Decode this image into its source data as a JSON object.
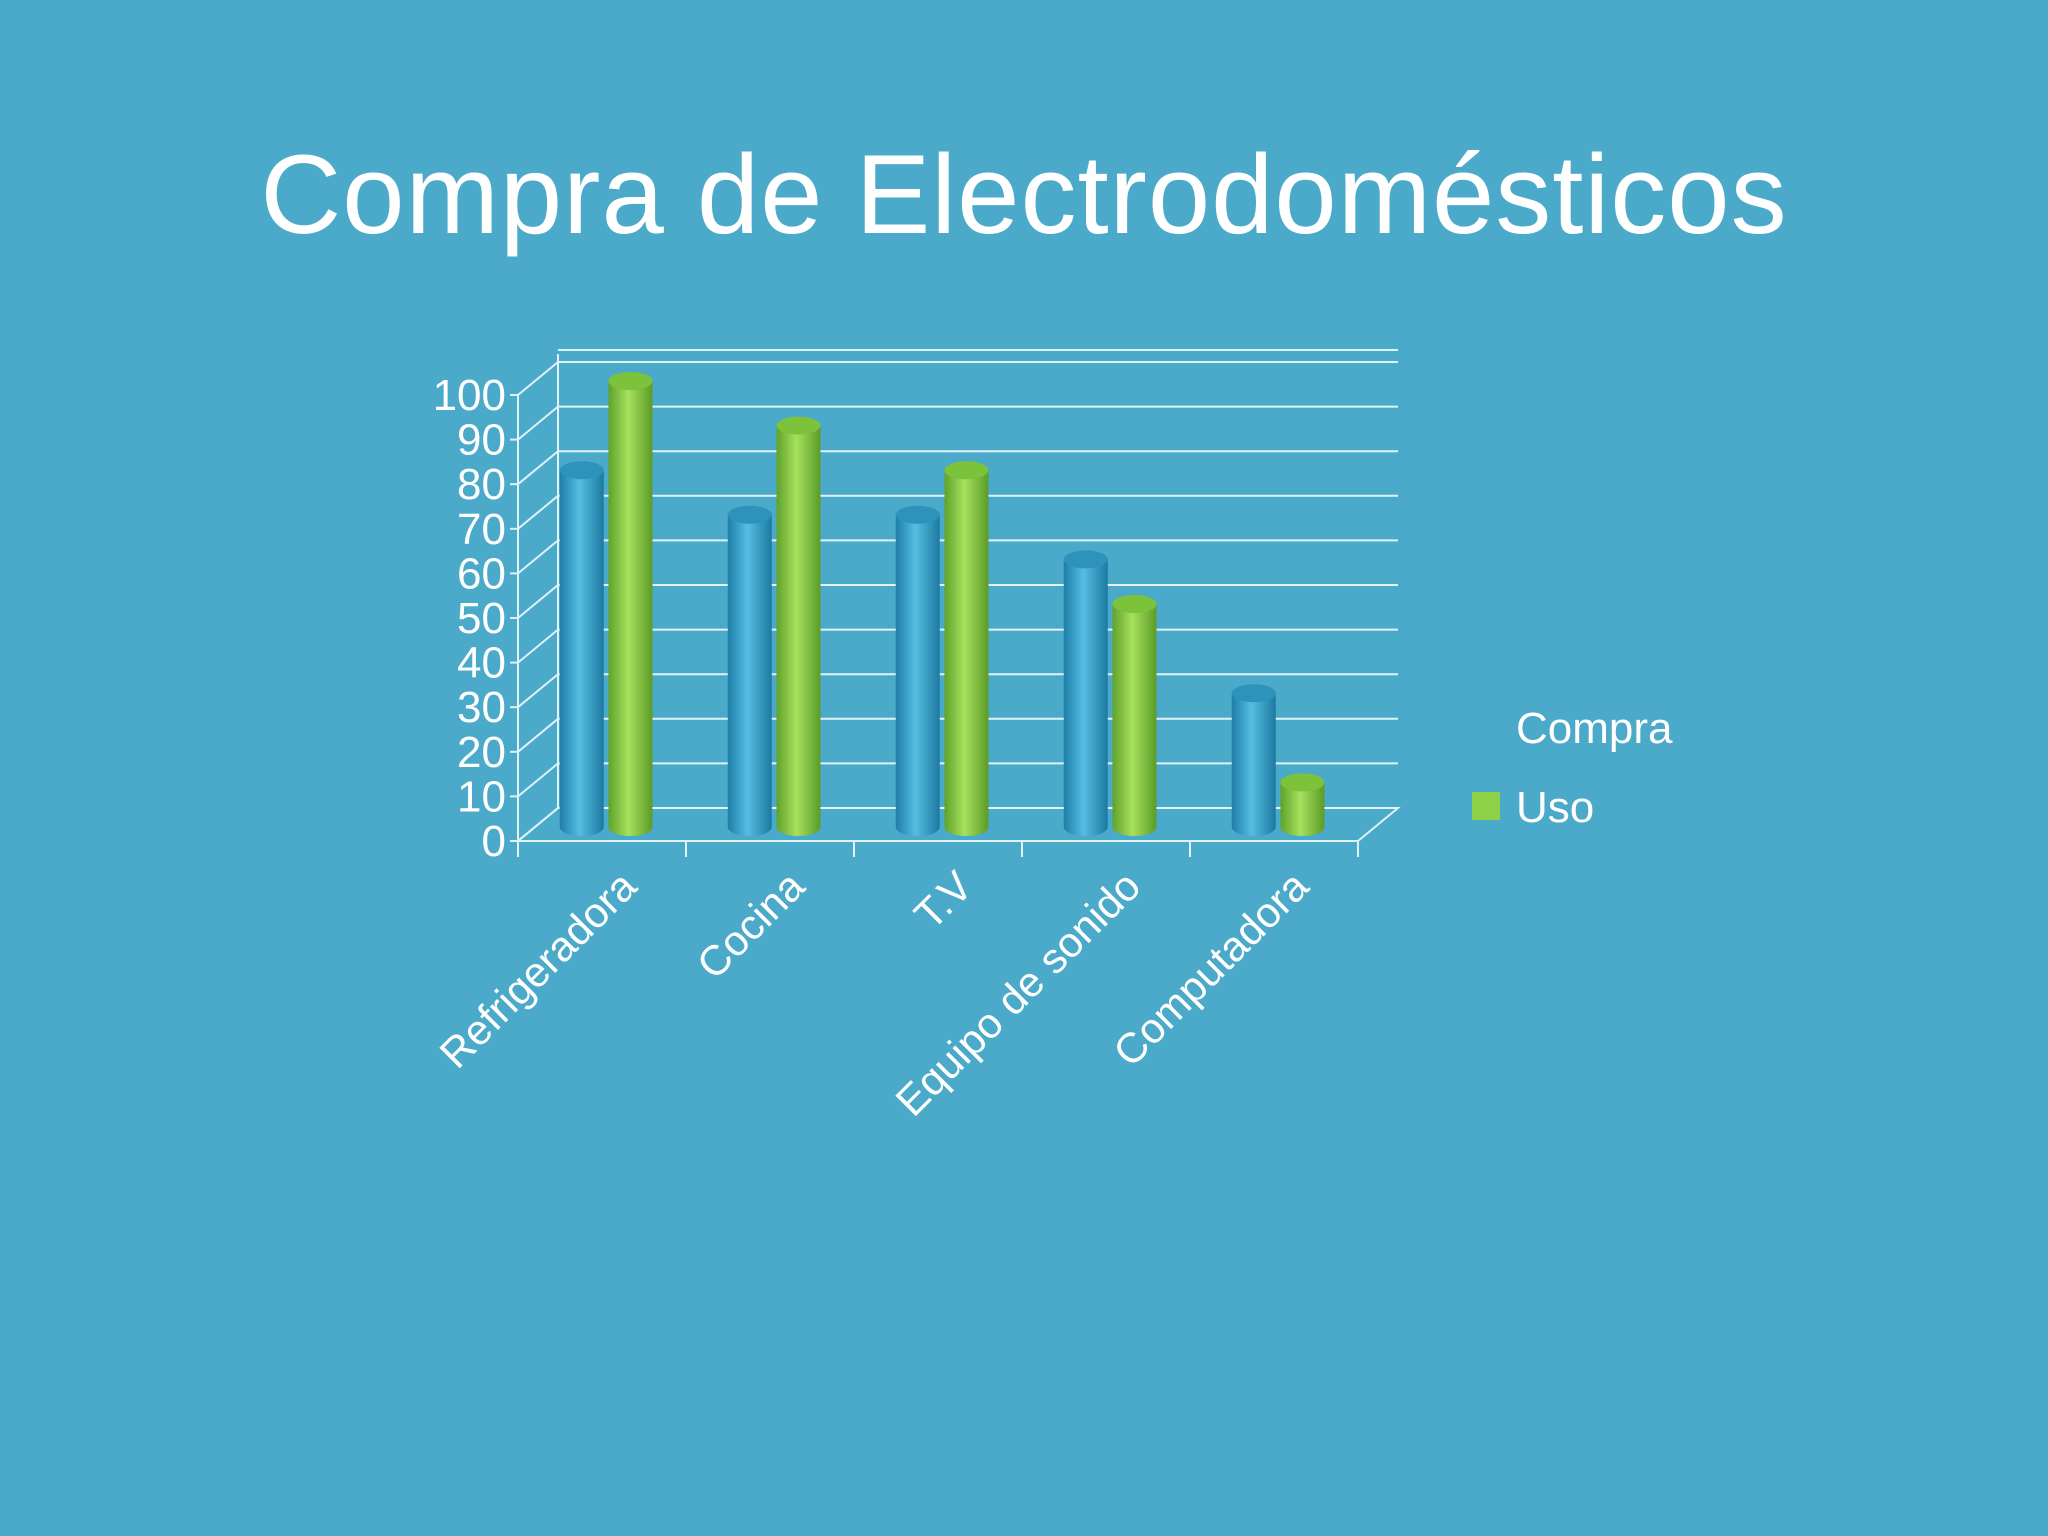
{
  "slide": {
    "title": "Compra de Electrodomésticos"
  },
  "colors": {
    "background": "#4baac9",
    "series_compra": "#3fa6cf",
    "series_uso": "#8ed147",
    "grid": "#dff2f8",
    "text": "#ffffff"
  },
  "chart_data": {
    "type": "bar",
    "style": "3d-cylinder",
    "title": "",
    "xlabel": "",
    "ylabel": "",
    "categories": [
      "Refrigeradora",
      "Cocina",
      "T.V",
      "Equipo de sonido",
      "Computadora"
    ],
    "series": [
      {
        "name": "Compra",
        "values": [
          80,
          70,
          70,
          60,
          30
        ],
        "color": "#3fa6cf",
        "legend_swatch": false
      },
      {
        "name": "Uso",
        "values": [
          100,
          90,
          80,
          50,
          10
        ],
        "color": "#8ed147",
        "legend_swatch": true
      }
    ],
    "ylim": [
      0,
      100
    ],
    "yticks": [
      0,
      10,
      20,
      30,
      40,
      50,
      60,
      70,
      80,
      90,
      100
    ],
    "grid": true,
    "legend_position": "right"
  }
}
